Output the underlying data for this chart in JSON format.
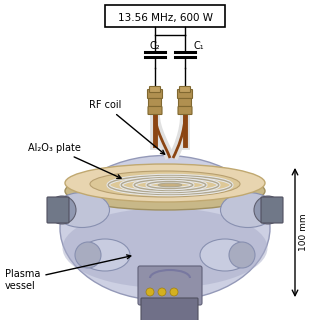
{
  "background_color": "#ffffff",
  "fig_width": 3.2,
  "fig_height": 3.2,
  "dpi": 100,
  "labels": {
    "rf_source": "13.56 MHz, 600 W",
    "rf_coil": "RF coil",
    "al2o3": "Al₂O₃ plate",
    "plasma_vessel": "Plasma\nvessel",
    "c1": "C₁",
    "c2": "C₂",
    "dimension": "100 mm"
  },
  "colors": {
    "vessel_body": "#cdd0e3",
    "vessel_body_edge": "#9499b8",
    "vessel_body_dark": "#a8acc8",
    "vessel_top_plate": "#e8d5b0",
    "vessel_top_plate_edge": "#c0a870",
    "vessel_top_center": "#d8c098",
    "coil_white": "#e8e8e8",
    "coil_edge": "#b0a890",
    "port_body": "#c0c4d8",
    "port_edge": "#8890b0",
    "flange_dark": "#888898",
    "flange_edge": "#606070",
    "connector_gold": "#b09050",
    "connector_edge": "#806830",
    "connector_dark": "#7a5020",
    "wire_white": "#e0e0e0",
    "wire_brown": "#8B4513",
    "text_color": "#000000",
    "box_fill": "#ffffff",
    "box_edge": "#000000"
  }
}
